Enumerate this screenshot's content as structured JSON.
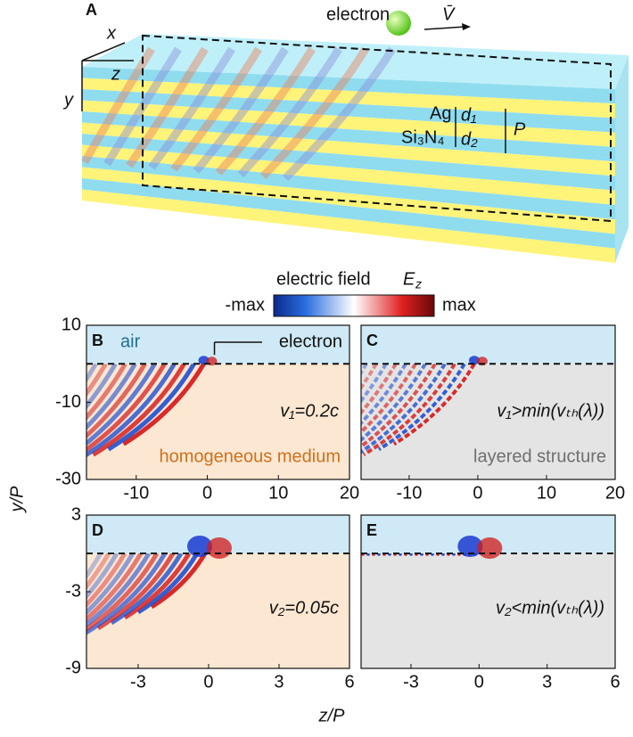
{
  "panel_a": {
    "label": "A",
    "electron": "electron",
    "velocity": "V̄",
    "axes": {
      "x": "x",
      "z": "z",
      "y": "y"
    },
    "materials": [
      "Ag",
      "Si₃N₄"
    ],
    "dims": [
      "d₁",
      "d₂"
    ],
    "period": "P"
  },
  "colorbar": {
    "title": "electric field",
    "symbol": "E",
    "subscript": "z",
    "min_label": "-max",
    "max_label": "max"
  },
  "y_axis_label": "y/P",
  "x_axis_label": "z/P",
  "panels": [
    {
      "label": "B",
      "xlim": [
        -17,
        20
      ],
      "ylim": [
        -30,
        10
      ],
      "xticks": [
        -10,
        0,
        10,
        20
      ],
      "yticks": [
        10,
        -10,
        -30
      ],
      "air": "air",
      "electron": "electron",
      "velocity": "v₁=0.2c",
      "medium": "homogeneous medium"
    },
    {
      "label": "C",
      "xlim": [
        -17,
        20
      ],
      "ylim": [
        -30,
        10
      ],
      "xticks": [
        -10,
        0,
        10,
        20
      ],
      "velocity": "v₁>min(vₜₕ(λ))",
      "medium": "layered structure"
    },
    {
      "label": "D",
      "xlim": [
        -5.2,
        6
      ],
      "ylim": [
        -9,
        3
      ],
      "xticks": [
        -3,
        0,
        3,
        6
      ],
      "yticks": [
        3,
        -3,
        -9
      ],
      "velocity": "v₂=0.05c"
    },
    {
      "label": "E",
      "xlim": [
        -5.2,
        6
      ],
      "ylim": [
        -9,
        3
      ],
      "xticks": [
        -3,
        0,
        3,
        6
      ],
      "velocity": "v₂<min(vₜₕ(λ))"
    }
  ]
}
